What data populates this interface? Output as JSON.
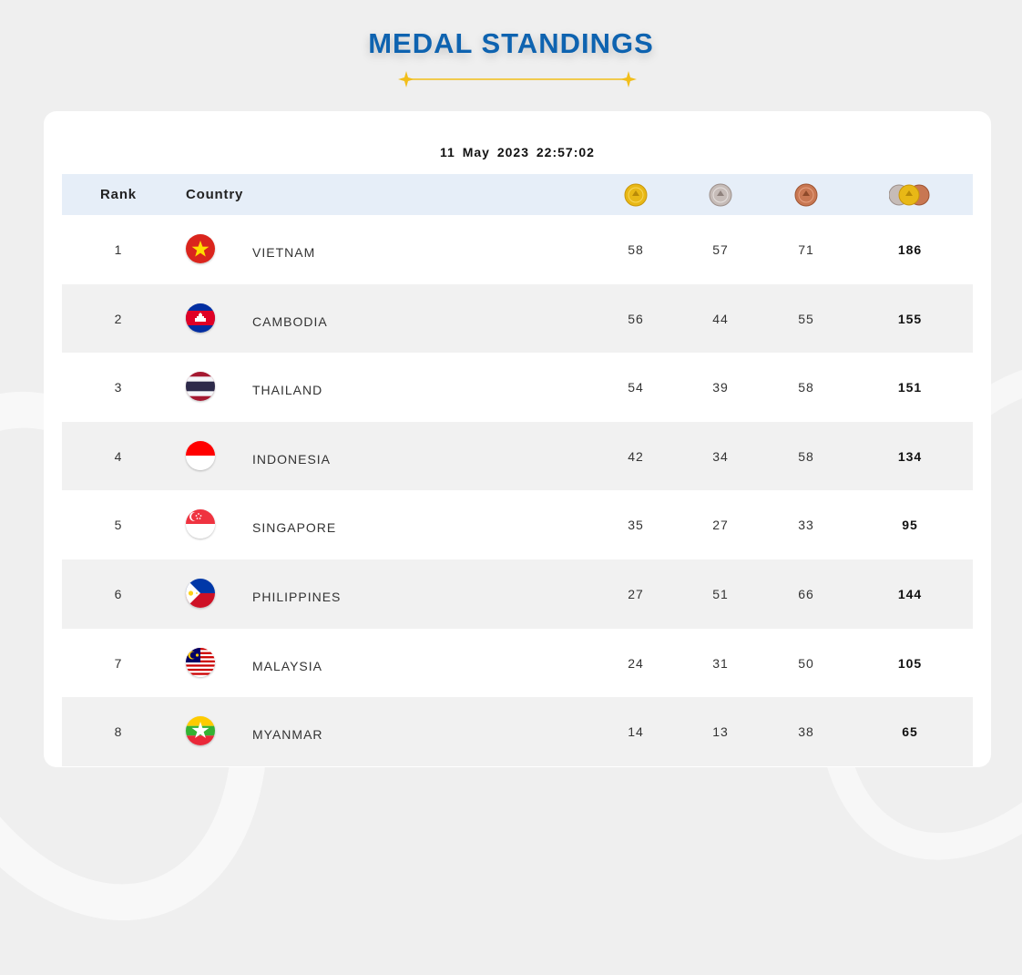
{
  "page": {
    "title": "MEDAL STANDINGS",
    "timestamp": "11 May 2023  22:57:02"
  },
  "colors": {
    "title": "#0e63b0",
    "accent_gold": "#f2be1a",
    "header_bg": "#e6eef8",
    "row_alt_bg": "#f1f1f1"
  },
  "table": {
    "headers": {
      "rank": "Rank",
      "country": "Country",
      "gold_icon": "gold-medal-icon",
      "silver_icon": "silver-medal-icon",
      "bronze_icon": "bronze-medal-icon",
      "total_icon": "total-medals-icon"
    },
    "rows": [
      {
        "rank": "1",
        "country": "VIETNAM",
        "flag": "vietnam-flag-icon",
        "gold": "58",
        "silver": "57",
        "bronze": "71",
        "total": "186"
      },
      {
        "rank": "2",
        "country": "CAMBODIA",
        "flag": "cambodia-flag-icon",
        "gold": "56",
        "silver": "44",
        "bronze": "55",
        "total": "155"
      },
      {
        "rank": "3",
        "country": "THAILAND",
        "flag": "thailand-flag-icon",
        "gold": "54",
        "silver": "39",
        "bronze": "58",
        "total": "151"
      },
      {
        "rank": "4",
        "country": "INDONESIA",
        "flag": "indonesia-flag-icon",
        "gold": "42",
        "silver": "34",
        "bronze": "58",
        "total": "134"
      },
      {
        "rank": "5",
        "country": "SINGAPORE",
        "flag": "singapore-flag-icon",
        "gold": "35",
        "silver": "27",
        "bronze": "33",
        "total": "95"
      },
      {
        "rank": "6",
        "country": "PHILIPPINES",
        "flag": "philippines-flag-icon",
        "gold": "27",
        "silver": "51",
        "bronze": "66",
        "total": "144"
      },
      {
        "rank": "7",
        "country": "MALAYSIA",
        "flag": "malaysia-flag-icon",
        "gold": "24",
        "silver": "31",
        "bronze": "50",
        "total": "105"
      },
      {
        "rank": "8",
        "country": "MYANMAR",
        "flag": "myanmar-flag-icon",
        "gold": "14",
        "silver": "13",
        "bronze": "38",
        "total": "65"
      }
    ]
  }
}
